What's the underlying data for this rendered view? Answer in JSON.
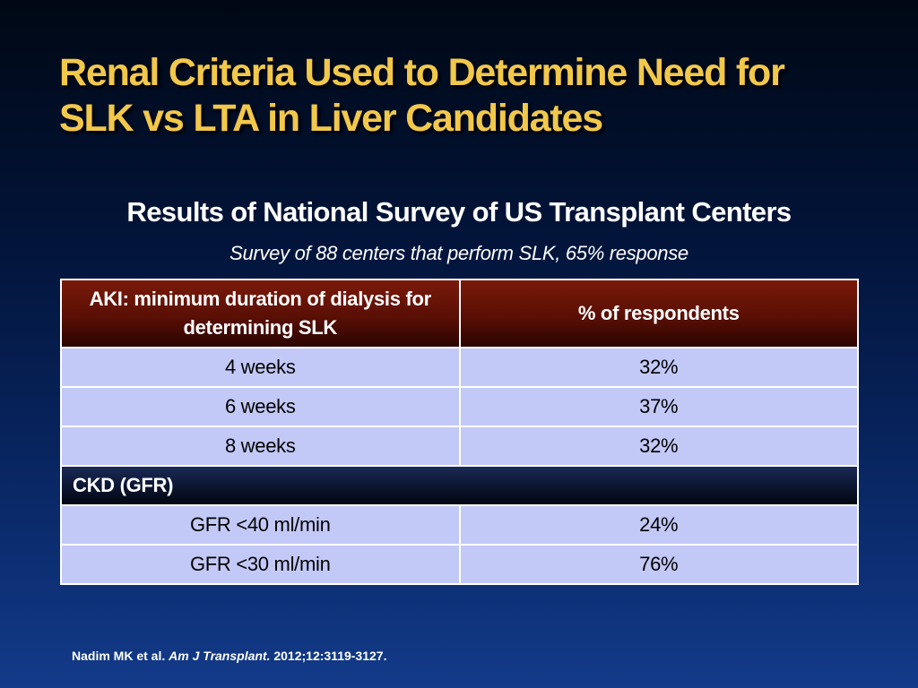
{
  "title": {
    "line1": "Renal Criteria Used to Determine Need for",
    "line2": "SLK vs LTA in Liver Candidates"
  },
  "subtitle": "Results of National Survey of US Transplant Centers",
  "caption": "Survey of 88 centers that perform SLK, 65% response",
  "table": {
    "header": {
      "col1": "AKI: minimum duration of dialysis for determining SLK",
      "col2": "% of respondents"
    },
    "aki_rows": [
      {
        "criterion": "4 weeks",
        "percent": "32%"
      },
      {
        "criterion": "6 weeks",
        "percent": "37%"
      },
      {
        "criterion": "8 weeks",
        "percent": "32%"
      }
    ],
    "ckd_section": "CKD (GFR)",
    "ckd_rows": [
      {
        "criterion": "GFR <40 ml/min",
        "percent": "24%"
      },
      {
        "criterion": "GFR <30 ml/min",
        "percent": "76%"
      }
    ]
  },
  "citation": {
    "authors": "Nadim MK et al.",
    "journal": "Am J Transplant.",
    "details": "2012;12:3119-3127."
  },
  "colors": {
    "title": "#f2c84b",
    "header_bg": "#6a1408",
    "row_bg": "#c3c9f7",
    "background": "#0a2a6a"
  }
}
